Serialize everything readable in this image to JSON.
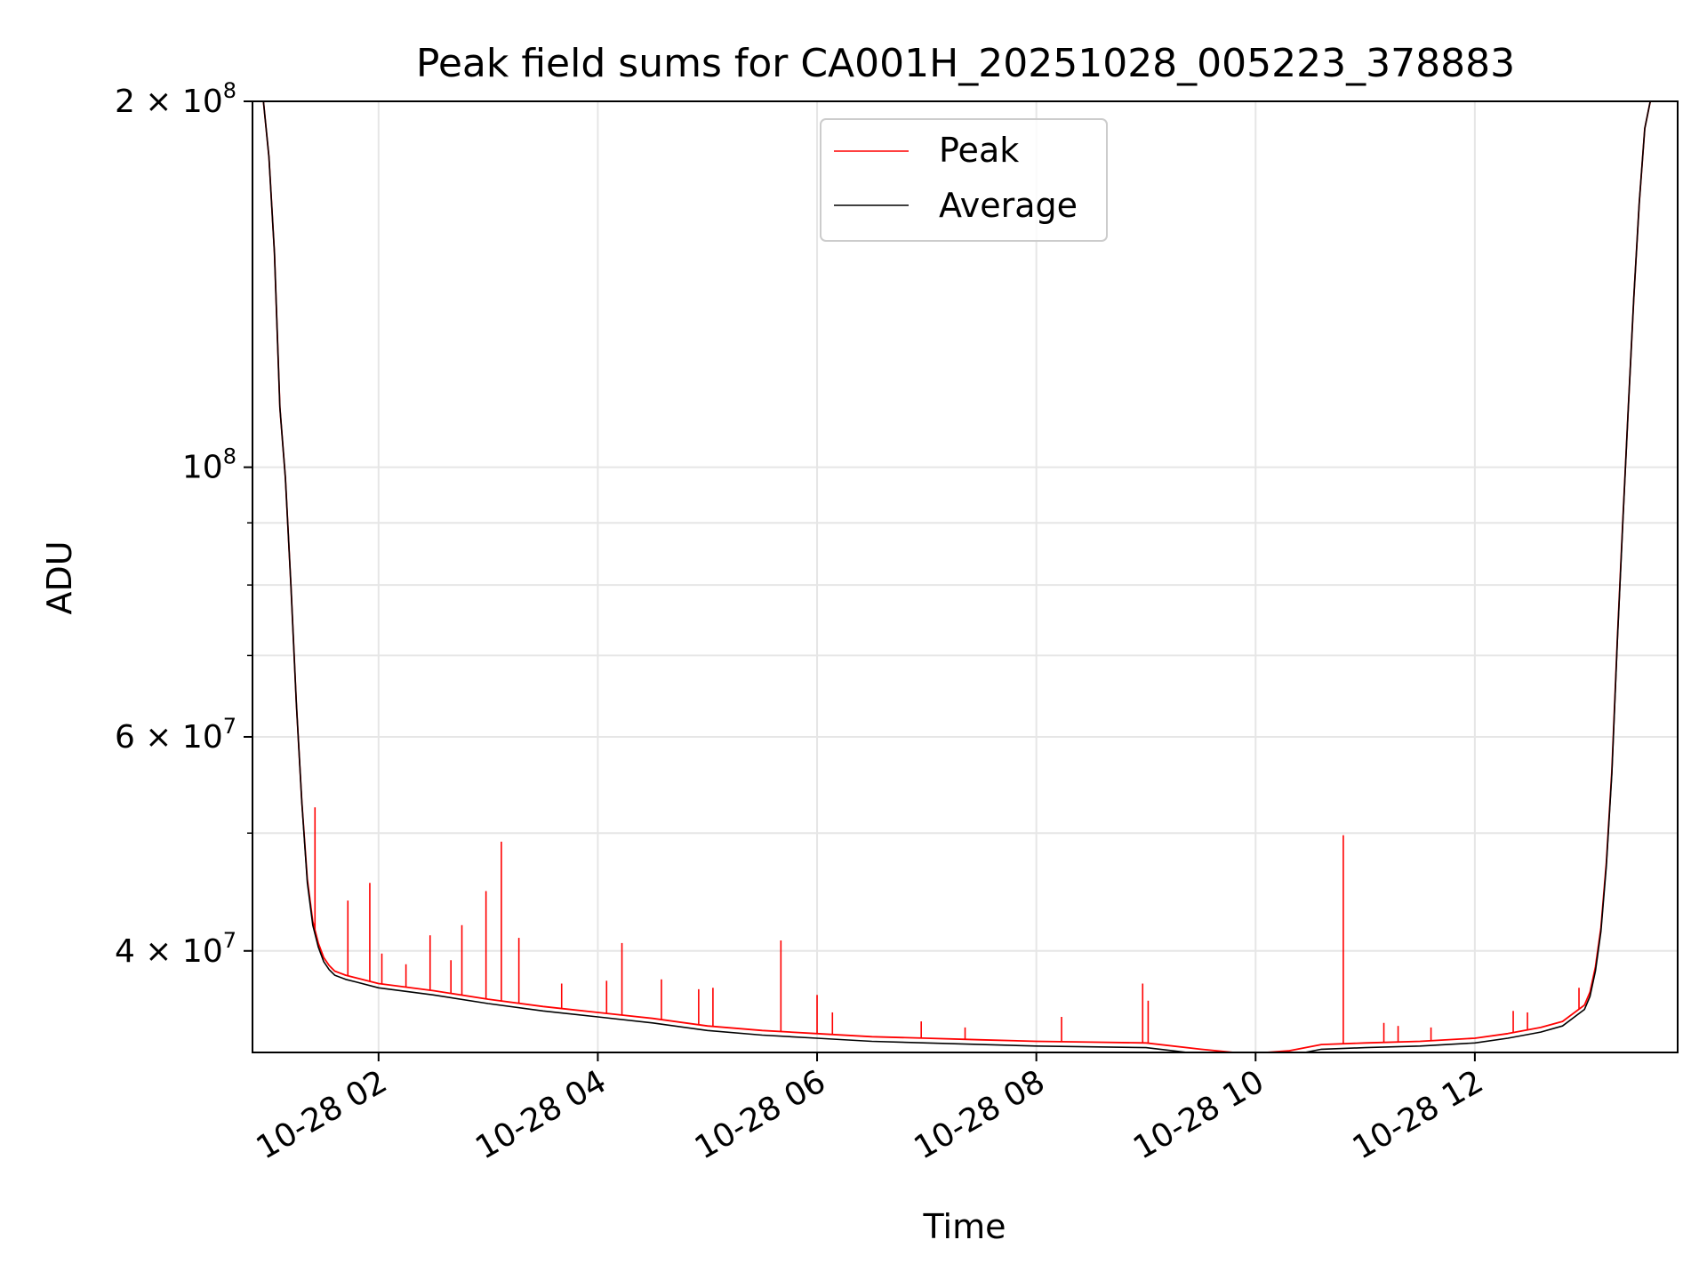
{
  "chart_data": {
    "type": "line",
    "title": "Peak field sums for CA001H_20251028_005223_378883",
    "xlabel": "Time",
    "ylabel": "ADU",
    "yscale": "log",
    "xlim": [
      0.85,
      13.85
    ],
    "ylim": [
      33000000,
      200000000
    ],
    "grid": true,
    "legend": "upper center",
    "x_unit": "hours since 2025-10-28 00:00",
    "x_ticks": [
      {
        "value": 2,
        "label": "10-28 02"
      },
      {
        "value": 4,
        "label": "10-28 04"
      },
      {
        "value": 6,
        "label": "10-28 06"
      },
      {
        "value": 8,
        "label": "10-28 08"
      },
      {
        "value": 10,
        "label": "10-28 10"
      },
      {
        "value": 12,
        "label": "10-28 12"
      }
    ],
    "y_major_ticks": [
      {
        "value": 40000000,
        "label": "4 × 10",
        "exp": "7"
      },
      {
        "value": 60000000,
        "label": "6 × 10",
        "exp": "7"
      },
      {
        "value": 100000000,
        "label": "10",
        "exp": "8"
      },
      {
        "value": 200000000,
        "label": "2 × 10",
        "exp": "8"
      }
    ],
    "y_minor_ticks": [
      50000000,
      70000000,
      80000000,
      90000000
    ],
    "series": [
      {
        "name": "Average",
        "color": "#000000",
        "x": [
          0.85,
          0.95,
          1.0,
          1.05,
          1.1,
          1.15,
          1.2,
          1.25,
          1.3,
          1.35,
          1.4,
          1.45,
          1.5,
          1.55,
          1.6,
          1.7,
          1.8,
          2.0,
          2.5,
          3.0,
          3.5,
          4.0,
          4.5,
          5.0,
          5.5,
          6.0,
          6.5,
          7.0,
          7.5,
          8.0,
          8.5,
          9.0,
          9.5,
          9.8,
          10.0,
          10.3,
          10.6,
          11.0,
          11.5,
          12.0,
          12.3,
          12.6,
          12.8,
          13.0,
          13.05,
          13.1,
          13.15,
          13.2,
          13.25,
          13.3,
          13.35,
          13.4,
          13.45,
          13.5,
          13.55,
          13.6,
          13.7,
          13.85
        ],
        "y": [
          200000000,
          200000000,
          180000000,
          150000000,
          112000000,
          98000000,
          80000000,
          64000000,
          53000000,
          45500000,
          42000000,
          40300000,
          39200000,
          38600000,
          38200000,
          37900000,
          37700000,
          37300000,
          36800000,
          36200000,
          35700000,
          35300000,
          34900000,
          34400000,
          34100000,
          33900000,
          33700000,
          33600000,
          33500000,
          33400000,
          33350000,
          33300000,
          32900000,
          32700000,
          32650000,
          32800000,
          33200000,
          33300000,
          33400000,
          33600000,
          33900000,
          34300000,
          34700000,
          35800000,
          36700000,
          38500000,
          41500000,
          47000000,
          56000000,
          72000000,
          90000000,
          112000000,
          138000000,
          165000000,
          190000000,
          200000000,
          200000000,
          200000000
        ]
      },
      {
        "name": "Peak",
        "color": "#ff0000",
        "x": [
          0.85,
          0.95,
          1.0,
          1.05,
          1.1,
          1.15,
          1.2,
          1.25,
          1.3,
          1.35,
          1.4,
          1.45,
          1.5,
          1.55,
          1.6,
          1.7,
          1.8,
          2.0,
          2.5,
          3.0,
          3.5,
          4.0,
          4.5,
          5.0,
          5.5,
          6.0,
          6.5,
          7.0,
          7.5,
          8.0,
          8.5,
          9.0,
          9.5,
          9.8,
          10.0,
          10.3,
          10.6,
          11.0,
          11.5,
          12.0,
          12.3,
          12.6,
          12.8,
          13.0,
          13.05,
          13.1,
          13.15,
          13.2,
          13.25,
          13.3,
          13.35,
          13.4,
          13.45,
          13.5,
          13.55,
          13.6,
          13.7,
          13.85
        ],
        "y": [
          200000000,
          200000000,
          180000000,
          150000000,
          112000000,
          98000000,
          80000000,
          64000000,
          53000000,
          45800000,
          42300000,
          40600000,
          39500000,
          38900000,
          38500000,
          38200000,
          38000000,
          37600000,
          37100000,
          36500000,
          36000000,
          35600000,
          35200000,
          34700000,
          34400000,
          34200000,
          34000000,
          33900000,
          33800000,
          33700000,
          33650000,
          33600000,
          33200000,
          33000000,
          32950000,
          33100000,
          33500000,
          33600000,
          33700000,
          33900000,
          34200000,
          34600000,
          35000000,
          36100000,
          37000000,
          38800000,
          41800000,
          47300000,
          56300000,
          72300000,
          90300000,
          112000000,
          138000000,
          165000000,
          190000000,
          200000000,
          200000000,
          200000000
        ],
        "spikes": [
          {
            "x": 1.42,
            "y": 52500000
          },
          {
            "x": 1.72,
            "y": 44000000
          },
          {
            "x": 1.92,
            "y": 45500000
          },
          {
            "x": 2.03,
            "y": 39800000
          },
          {
            "x": 2.25,
            "y": 39000000
          },
          {
            "x": 2.47,
            "y": 41200000
          },
          {
            "x": 2.66,
            "y": 39300000
          },
          {
            "x": 2.76,
            "y": 42000000
          },
          {
            "x": 2.98,
            "y": 44800000
          },
          {
            "x": 3.12,
            "y": 49200000
          },
          {
            "x": 3.28,
            "y": 41000000
          },
          {
            "x": 3.67,
            "y": 37600000
          },
          {
            "x": 4.08,
            "y": 37800000
          },
          {
            "x": 4.22,
            "y": 40600000
          },
          {
            "x": 4.58,
            "y": 37900000
          },
          {
            "x": 4.92,
            "y": 37200000
          },
          {
            "x": 5.05,
            "y": 37300000
          },
          {
            "x": 5.67,
            "y": 40800000
          },
          {
            "x": 6.0,
            "y": 36800000
          },
          {
            "x": 6.14,
            "y": 35600000
          },
          {
            "x": 6.95,
            "y": 35000000
          },
          {
            "x": 7.35,
            "y": 34600000
          },
          {
            "x": 8.23,
            "y": 35300000
          },
          {
            "x": 8.97,
            "y": 37600000
          },
          {
            "x": 9.02,
            "y": 36400000
          },
          {
            "x": 10.8,
            "y": 49800000
          },
          {
            "x": 11.17,
            "y": 34900000
          },
          {
            "x": 11.3,
            "y": 34700000
          },
          {
            "x": 11.6,
            "y": 34600000
          },
          {
            "x": 12.35,
            "y": 35700000
          },
          {
            "x": 12.48,
            "y": 35600000
          },
          {
            "x": 12.95,
            "y": 37300000
          }
        ]
      }
    ]
  }
}
